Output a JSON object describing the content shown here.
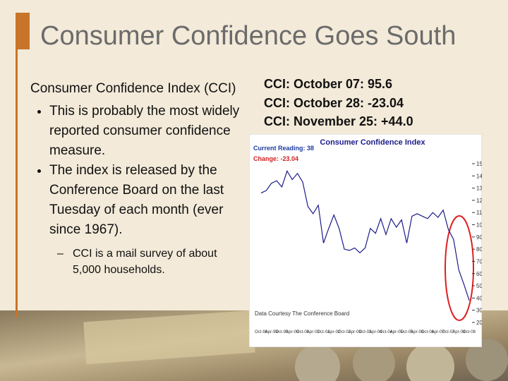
{
  "slide": {
    "title": "Consumer Confidence Goes South",
    "heading": "Consumer Confidence Index (CCI)",
    "bullets": [
      "This is probably the most widely reported consumer confidence measure.",
      "The index is released by the Conference Board on the last Tuesday of each month (ever since 1967)."
    ],
    "sub_bullets": [
      "CCI is a mail survey of about 5,000 households."
    ],
    "readings": [
      "CCI: October 07: 95.6",
      "CCI: October 28: -23.04",
      "CCI: November 25: +44.0"
    ]
  },
  "chart_data": {
    "type": "line",
    "title": "Consumer Confidence Index",
    "annotations": [
      "Current Reading: 38",
      "Change: -23.04",
      "Data Courtesy The Conference Board"
    ],
    "categories": [
      "Oct-98",
      null,
      "Apr-99",
      null,
      "Oct-99",
      null,
      "Apr-00",
      null,
      "Oct-00",
      null,
      "Apr-01",
      null,
      "Oct-01",
      null,
      "Apr-02",
      null,
      "Oct-02",
      null,
      "Apr-03",
      null,
      "Oct-03",
      null,
      "Apr-04",
      null,
      "Oct-04",
      null,
      "Apr-05",
      null,
      "Oct-05",
      null,
      "Apr-06",
      null,
      "Oct-06",
      null,
      "Apr-07",
      null,
      "Oct-07",
      null,
      "Apr-08",
      null,
      "Oct-08"
    ],
    "values": [
      126,
      128,
      134,
      136,
      131,
      144,
      137,
      142,
      135,
      115,
      109,
      116,
      85,
      97,
      108,
      97,
      80,
      79,
      81,
      77,
      81,
      97,
      93,
      105,
      92,
      105,
      98,
      104,
      85,
      107,
      109,
      107,
      105,
      110,
      106,
      112,
      96,
      88,
      63,
      51,
      38
    ],
    "color": "#1c1c8a",
    "ylim": [
      20,
      150
    ],
    "yticks": [
      20,
      30,
      40,
      50,
      60,
      70,
      80,
      90,
      100,
      110,
      120,
      130,
      140,
      150
    ]
  }
}
